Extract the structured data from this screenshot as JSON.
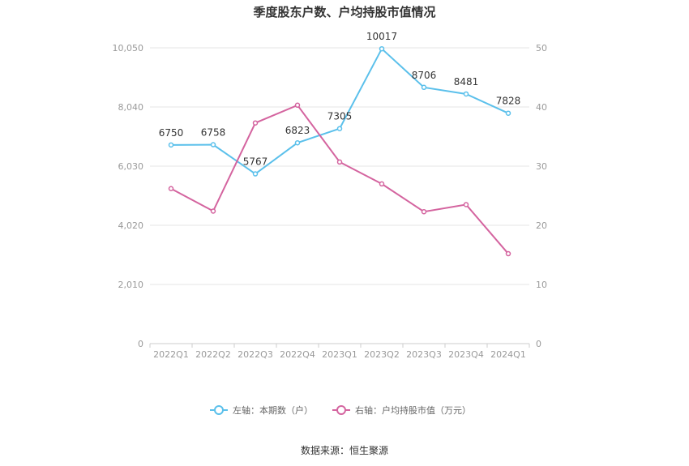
{
  "chart_data": {
    "type": "line",
    "title": "季度股东户数、户均持股市值情况",
    "categories": [
      "2022Q1",
      "2022Q2",
      "2022Q3",
      "2022Q4",
      "2023Q1",
      "2023Q2",
      "2023Q3",
      "2023Q4",
      "2024Q1"
    ],
    "left_axis": {
      "ticks": [
        "0",
        "2,010",
        "4,020",
        "6,030",
        "8,040",
        "10,050"
      ],
      "range": [
        0,
        10050
      ]
    },
    "right_axis": {
      "ticks": [
        "0",
        "10",
        "20",
        "30",
        "40",
        "50"
      ],
      "range": [
        0,
        50
      ]
    },
    "series": [
      {
        "name": "左轴：本期数（户）",
        "axis": "left",
        "color": "#5bc0eb",
        "values": [
          6750,
          6758,
          5767,
          6823,
          7305,
          10017,
          8706,
          8481,
          7828
        ],
        "labels": [
          "6750",
          "6758",
          "5767",
          "6823",
          "7305",
          "10017",
          "8706",
          "8481",
          "7828"
        ]
      },
      {
        "name": "右轴：户均持股市值（万元）",
        "axis": "right",
        "color": "#d4649f",
        "values": [
          26.2,
          22.4,
          37.3,
          40.3,
          30.7,
          27.0,
          22.3,
          23.5,
          15.2
        ]
      }
    ],
    "grid": true,
    "legend_position": "bottom"
  },
  "source": "数据来源：恒生聚源"
}
